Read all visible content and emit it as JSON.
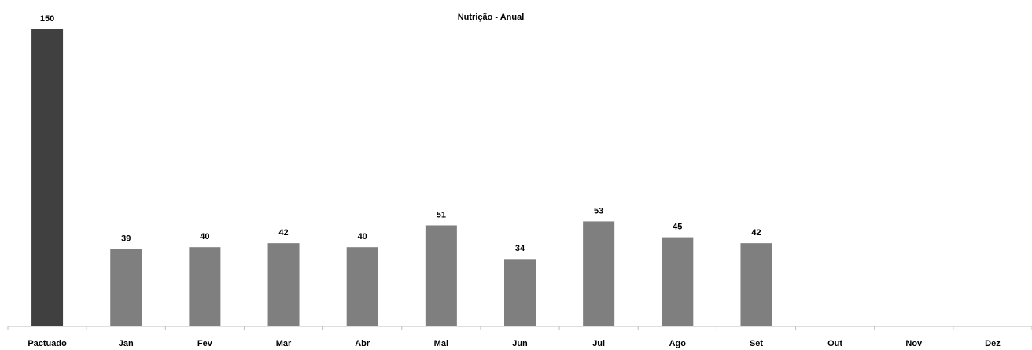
{
  "chart_data": {
    "type": "bar",
    "title": "Nutrição - Anual",
    "categories": [
      "Pactuado",
      "Jan",
      "Fev",
      "Mar",
      "Abr",
      "Mai",
      "Jun",
      "Jul",
      "Ago",
      "Set",
      "Out",
      "Nov",
      "Dez"
    ],
    "values": [
      150,
      39,
      40,
      42,
      40,
      51,
      34,
      53,
      45,
      42,
      null,
      null,
      null
    ],
    "colors": [
      "#404040",
      "#7f7f7f",
      "#7f7f7f",
      "#7f7f7f",
      "#7f7f7f",
      "#7f7f7f",
      "#7f7f7f",
      "#7f7f7f",
      "#7f7f7f",
      "#7f7f7f",
      "#7f7f7f",
      "#7f7f7f",
      "#7f7f7f"
    ],
    "ylim": [
      0,
      150
    ]
  }
}
